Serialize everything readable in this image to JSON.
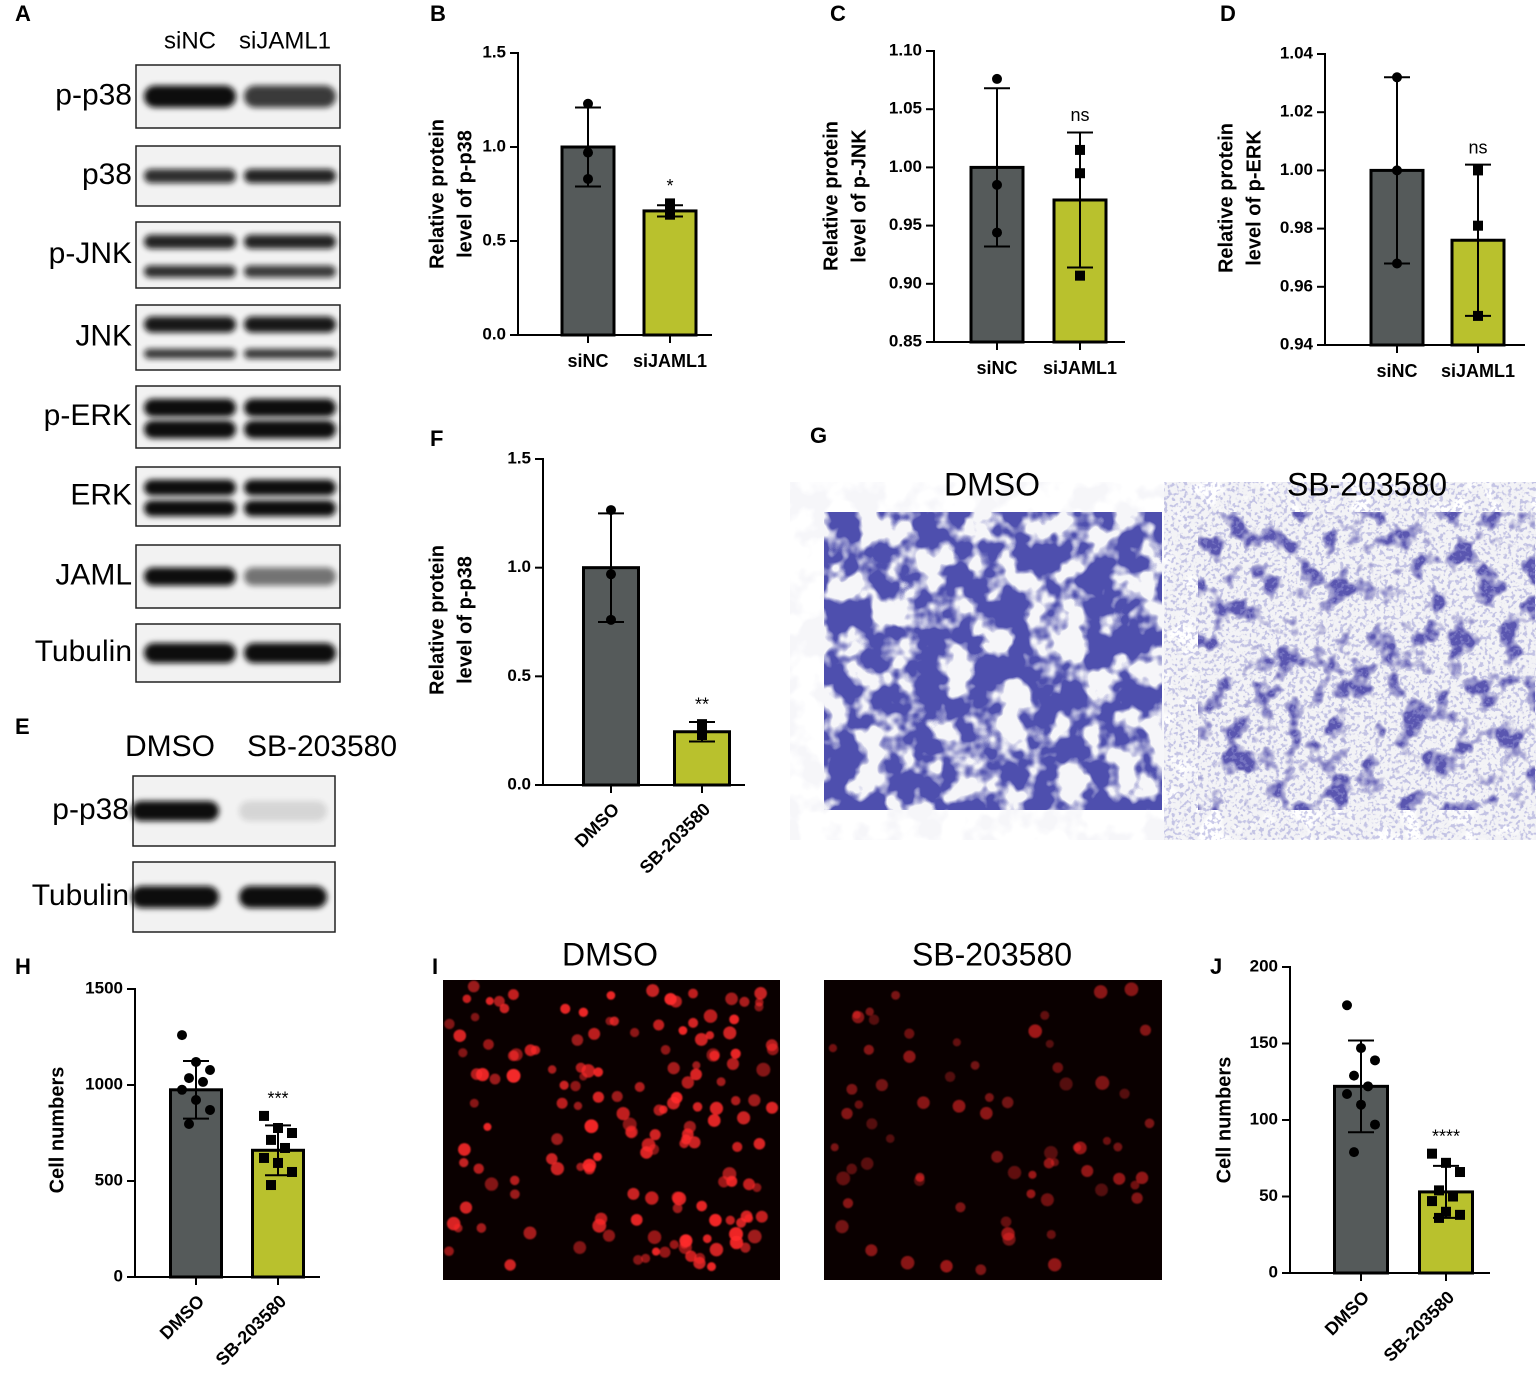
{
  "blots": [
    {
      "panel": "A",
      "columns": [
        "siNC",
        "siJAML1"
      ],
      "rows": [
        "p-p38",
        "p38",
        "p-JNK",
        "JNK",
        "p-ERK",
        "ERK",
        "JAML",
        "Tubulin"
      ]
    },
    {
      "panel": "E",
      "columns": [
        "DMSO",
        "SB-203580"
      ],
      "rows": [
        "p-p38",
        "Tubulin"
      ]
    }
  ],
  "images": [
    {
      "panel": "G",
      "titles": [
        "DMSO",
        "SB-203580"
      ]
    },
    {
      "panel": "I",
      "titles": [
        "DMSO",
        "SB-203580"
      ]
    }
  ],
  "chart_data": [
    {
      "type": "bar",
      "panel": "B",
      "ylabel": [
        "Relative protein",
        "level of p-p38"
      ],
      "categories": [
        "siNC",
        "siJAML1"
      ],
      "values": [
        1.0,
        0.66
      ],
      "errors": [
        0.21,
        0.03
      ],
      "points": [
        [
          1.23,
          0.97,
          0.83
        ],
        [
          0.7,
          0.65,
          0.64
        ]
      ],
      "annotations": [
        null,
        "*"
      ],
      "colors": [
        "#555a5a",
        "#b9c12d"
      ],
      "markers": [
        "circle",
        "square"
      ],
      "ylim": [
        0,
        1.5
      ],
      "yticks": [
        {
          "value": 0,
          "label": "0.0"
        },
        0.5,
        {
          "value": 1,
          "label": "1.0"
        },
        1.5
      ]
    },
    {
      "type": "bar",
      "panel": "C",
      "ylabel": [
        "Relative protein",
        "level of p-JNK"
      ],
      "categories": [
        "siNC",
        "siJAML1"
      ],
      "values": [
        1.0,
        0.972
      ],
      "errors": [
        0.068,
        0.058
      ],
      "points": [
        [
          1.076,
          0.985,
          0.944
        ],
        [
          1.015,
          0.995,
          0.907
        ]
      ],
      "annotations": [
        null,
        "ns"
      ],
      "colors": [
        "#555a5a",
        "#b9c12d"
      ],
      "markers": [
        "circle",
        "square"
      ],
      "ylim": [
        0.85,
        1.1
      ],
      "yticks": [
        0.85,
        {
          "value": 0.9,
          "label": "0.90"
        },
        0.95,
        {
          "value": 1,
          "label": "1.00"
        },
        1.05,
        {
          "value": 1.1,
          "label": "1.10"
        }
      ]
    },
    {
      "type": "bar",
      "panel": "D",
      "ylabel": [
        "Relative protein",
        "level of p-ERK"
      ],
      "categories": [
        "siNC",
        "siJAML1"
      ],
      "values": [
        1.0,
        0.976
      ],
      "errors": [
        0.032,
        0.026
      ],
      "points": [
        [
          1.032,
          1.0,
          0.968
        ],
        [
          1.0,
          0.981,
          0.95
        ]
      ],
      "annotations": [
        null,
        "ns"
      ],
      "colors": [
        "#555a5a",
        "#b9c12d"
      ],
      "markers": [
        "circle",
        "square"
      ],
      "ylim": [
        0.94,
        1.04
      ],
      "yticks": [
        0.94,
        0.96,
        0.98,
        {
          "value": 1,
          "label": "1.00"
        },
        1.02,
        1.04
      ]
    },
    {
      "type": "bar",
      "panel": "F",
      "ylabel": [
        "Relative protein",
        "level of p-p38"
      ],
      "categories": [
        "DMSO",
        "SB-203580"
      ],
      "values": [
        1.0,
        0.245
      ],
      "errors": [
        0.25,
        0.045
      ],
      "points": [
        [
          1.265,
          0.97,
          0.76
        ],
        [
          0.28,
          0.23,
          0.24
        ]
      ],
      "annotations": [
        null,
        "**"
      ],
      "colors": [
        "#555a5a",
        "#b9c12d"
      ],
      "markers": [
        "circle",
        "square"
      ],
      "ylim": [
        0,
        1.5
      ],
      "yticks": [
        {
          "value": 0,
          "label": "0.0"
        },
        0.5,
        {
          "value": 1,
          "label": "1.0"
        },
        1.5
      ]
    },
    {
      "type": "bar",
      "panel": "H",
      "ylabel": "Cell numbers",
      "categories": [
        "DMSO",
        "SB-203580"
      ],
      "values": [
        975,
        660
      ],
      "errors": [
        150,
        130
      ],
      "points": [
        [
          1260,
          1120,
          1078,
          1036,
          1016,
          975,
          922,
          870,
          797
        ],
        [
          839,
          776,
          750,
          714,
          672,
          620,
          594,
          547,
          479
        ]
      ],
      "annotations": [
        null,
        "***"
      ],
      "colors": [
        "#555a5a",
        "#b9c12d"
      ],
      "markers": [
        "circle",
        "square"
      ],
      "ylim": [
        0,
        1500
      ],
      "yticks": [
        0,
        500,
        1000,
        1500
      ]
    },
    {
      "type": "bar",
      "panel": "J",
      "ylabel": "Cell numbers",
      "categories": [
        "DMSO",
        "SB-203580"
      ],
      "values": [
        122,
        53
      ],
      "errors": [
        30,
        17
      ],
      "points": [
        [
          175,
          147,
          139,
          129,
          122,
          117,
          110,
          97,
          79
        ],
        [
          78,
          72,
          66,
          54,
          50,
          47,
          40,
          38,
          36
        ]
      ],
      "annotations": [
        null,
        "****"
      ],
      "colors": [
        "#555a5a",
        "#b9c12d"
      ],
      "markers": [
        "circle",
        "square"
      ],
      "ylim": [
        0,
        200
      ],
      "yticks": [
        0,
        50,
        100,
        150,
        200
      ]
    }
  ]
}
